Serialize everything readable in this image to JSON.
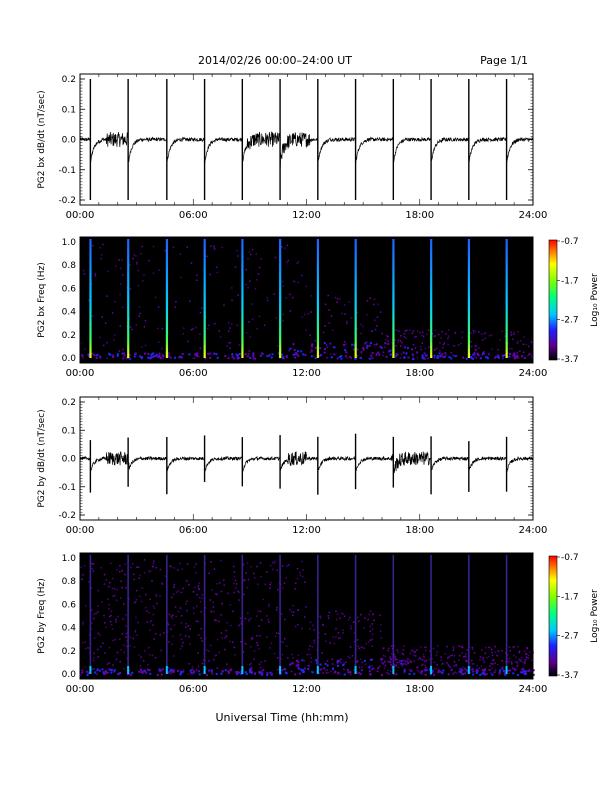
{
  "header": {
    "title": "2014/02/26  00:00–24:00 UT",
    "page": "Page 1/1"
  },
  "xaxis": {
    "label": "Universal Time (hh:mm)",
    "ticks": [
      "00:00",
      "06:00",
      "12:00",
      "18:00",
      "24:00"
    ],
    "range_hours": [
      0,
      24
    ]
  },
  "colorbar": {
    "label": "Log₁₀ Power",
    "ticks": [
      "-0.7",
      "-1.7",
      "-2.7",
      "-3.7"
    ],
    "range": [
      -3.7,
      -0.7
    ]
  },
  "chart_data": [
    {
      "type": "line",
      "ylabel": "PG2 bx dB/dt (nT/sec)",
      "ylim": [
        -0.2,
        0.2
      ],
      "yticks": [
        "0.2",
        "0.1",
        "0.0",
        "-0.1",
        "-0.2"
      ],
      "spike_times_hours": [
        0.55,
        2.55,
        4.6,
        6.6,
        8.6,
        10.6,
        12.6,
        14.6,
        16.6,
        18.6,
        20.6,
        22.6
      ],
      "activity_windows_hours": [
        [
          1.4,
          2.6
        ],
        [
          8.8,
          12.2
        ]
      ],
      "baseline": 0.0
    },
    {
      "type": "heatmap",
      "ylabel": "PG2 bx Freq (Hz)",
      "ylim": [
        0.0,
        1.0
      ],
      "yticks": [
        "1.0",
        "0.8",
        "0.6",
        "0.4",
        "0.2",
        "0.0"
      ],
      "vertical_stripe_times_hours": [
        0.55,
        2.55,
        4.6,
        6.6,
        8.6,
        10.6,
        12.6,
        14.6,
        16.6,
        18.6,
        20.6,
        22.6
      ],
      "color_scale": "log10 power"
    },
    {
      "type": "line",
      "ylabel": "PG2 by dB/dt (nT/sec)",
      "ylim": [
        -0.2,
        0.2
      ],
      "yticks": [
        "0.2",
        "0.1",
        "0.0",
        "-0.1",
        "-0.2"
      ],
      "spike_times_hours": [
        0.55,
        2.55,
        4.6,
        6.6,
        8.6,
        10.6,
        12.6,
        14.6,
        16.6,
        18.6,
        20.6,
        22.6
      ],
      "activity_windows_hours": [
        [
          1.4,
          2.6
        ],
        [
          11.0,
          12.0
        ],
        [
          16.5,
          18.5
        ]
      ],
      "baseline": 0.0
    },
    {
      "type": "heatmap",
      "ylabel": "PG2 by Freq (Hz)",
      "ylim": [
        0.0,
        1.0
      ],
      "yticks": [
        "1.0",
        "0.8",
        "0.6",
        "0.4",
        "0.2",
        "0.0"
      ],
      "vertical_stripe_times_hours": [
        0.55,
        2.55,
        4.6,
        6.6,
        8.6,
        10.6,
        12.6,
        14.6,
        16.6,
        18.6,
        20.6,
        22.6
      ],
      "color_scale": "log10 power"
    }
  ]
}
